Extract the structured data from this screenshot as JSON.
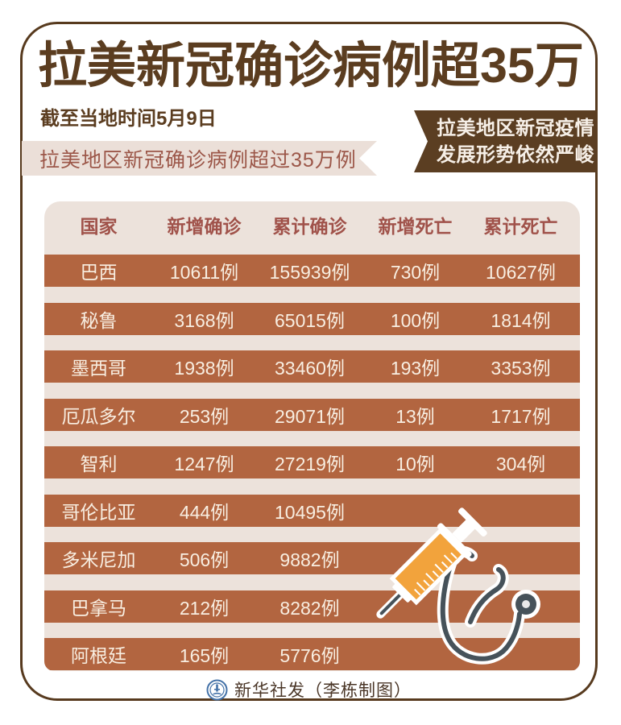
{
  "title": "拉美新冠确诊病例超35万",
  "subtitle": "截至当地时间5月9日",
  "banner": {
    "text": "拉美地区新冠确诊病例超过35万例"
  },
  "ribbon": {
    "line1": "拉美地区新冠疫情",
    "line2": "发展形势依然严峻"
  },
  "chart_data": {
    "type": "table",
    "title": "拉美新冠确诊病例超35万",
    "subtitle": "截至当地时间5月9日",
    "columns": [
      "国家",
      "新增确诊",
      "累计确诊",
      "新增死亡",
      "累计死亡"
    ],
    "rows": [
      [
        "巴西",
        "10611例",
        "155939例",
        "730例",
        "10627例"
      ],
      [
        "秘鲁",
        "3168例",
        "65015例",
        "100例",
        "1814例"
      ],
      [
        "墨西哥",
        "1938例",
        "33460例",
        "193例",
        "3353例"
      ],
      [
        "厄瓜多尔",
        "253例",
        "29071例",
        "13例",
        "1717例"
      ],
      [
        "智利",
        "1247例",
        "27219例",
        "10例",
        "304例"
      ],
      [
        "哥伦比亚",
        "444例",
        "10495例",
        "",
        ""
      ],
      [
        "多米尼加",
        "506例",
        "9882例",
        "",
        ""
      ],
      [
        "巴拿马",
        "212例",
        "8282例",
        "",
        ""
      ],
      [
        "阿根廷",
        "165例",
        "5776例",
        "",
        ""
      ]
    ],
    "unit": "例"
  },
  "footer": {
    "credit": "新华社发（李栋制图）"
  },
  "icons": {
    "syringe": "syringe-icon",
    "stethoscope": "stethoscope-icon",
    "logo": "xinhua-logo"
  },
  "colors": {
    "darkBrown": "#5b3d20",
    "terracotta": "#b26540",
    "beige": "#ece2db",
    "bannerBg": "#ebdfd8",
    "bannerText": "#9c5749",
    "headerText": "#a0524a",
    "rowText": "#f8eee1",
    "ribbonText": "#f6efe7",
    "orange": "#f2a33c",
    "slate": "#46525a",
    "logoBlue": "#4472a8",
    "footerText": "#4a3627"
  }
}
